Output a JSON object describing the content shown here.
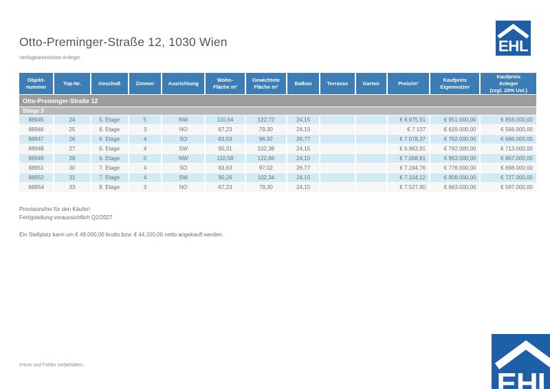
{
  "page": {
    "title": "Otto-Preminger-Straße 12, 1030 Wien",
    "subtitle": "Verfügbarkeitsliste Anleger",
    "disclaimer": "Irrtum und Fehler vorbehalten."
  },
  "logo": {
    "text": "EHL",
    "color": "#1d5fa8"
  },
  "table": {
    "columns": [
      "Objekt-\nnummer",
      "Top-Nr.",
      "Geschoß",
      "Zimmer",
      "Ausrichtung",
      "Wohn-\nFläche m²",
      "Gewichtete\nFläche m²",
      "Balkon",
      "Terrasse",
      "Garten",
      "Preis/m²",
      "Kaufpreis\nEigennutzer",
      "Kaufpreis\nAnleger\n(zzgl. 20% Ust.)"
    ],
    "section": "Otto-Preminger-Straße 12",
    "subsection": "Stiege 3",
    "rows": [
      [
        "88945",
        "24",
        "5. Etage",
        "5",
        "NW",
        "110,64",
        "122,72",
        "24,15",
        "",
        "",
        "€ 6.975,51",
        "€ 951.000,00",
        "€ 856.000,00"
      ],
      [
        "88946",
        "25",
        "6. Etage",
        "3",
        "NO",
        "67,23",
        "79,30",
        "24,15",
        "",
        "",
        "€ 7.137",
        "€ 629.000,00",
        "€ 566.000,00"
      ],
      [
        "88947",
        "26",
        "6. Etage",
        "4",
        "SO",
        "83,53",
        "96,92",
        "26,77",
        "",
        "",
        "€ 7.078,37",
        "€ 762.000,00",
        "€ 686.000,00"
      ],
      [
        "88948",
        "27",
        "6. Etage",
        "4",
        "SW",
        "90,31",
        "102,38",
        "24,15",
        "",
        "",
        "€ 6.963,91",
        "€ 792.000,00",
        "€ 713.000,00"
      ],
      [
        "88949",
        "28",
        "6. Etage",
        "5",
        "NW",
        "110,58",
        "122,66",
        "24,15",
        "",
        "",
        "€ 7.068,61",
        "€ 963.000,00",
        "€ 867.000,00"
      ],
      [
        "88951",
        "30",
        "7. Etage",
        "4",
        "SO",
        "83,63",
        "97,02",
        "26,77",
        "",
        "",
        "€ 7.194,76",
        "€ 776.000,00",
        "€ 698.000,00"
      ],
      [
        "88952",
        "31",
        "7. Etage",
        "4",
        "SW",
        "90,26",
        "102,34",
        "24,15",
        "",
        "",
        "€ 7.104,12",
        "€ 808.000,00",
        "€ 727.000,00"
      ],
      [
        "88954",
        "33",
        "8. Etage",
        "3",
        "NO",
        "67,23",
        "79,30",
        "24,15",
        "",
        "",
        "€ 7.527,90",
        "€ 663.000,00",
        "€ 597.000,00"
      ]
    ]
  },
  "notes": [
    "Provisionsfrei für den Käufer!",
    "Fertigstellung voraussichtlich Q2/2027",
    "Ein Stellplatz kann um € 49.000,00 brutto bzw. € 44.100,00 netto angekauft werden."
  ]
}
